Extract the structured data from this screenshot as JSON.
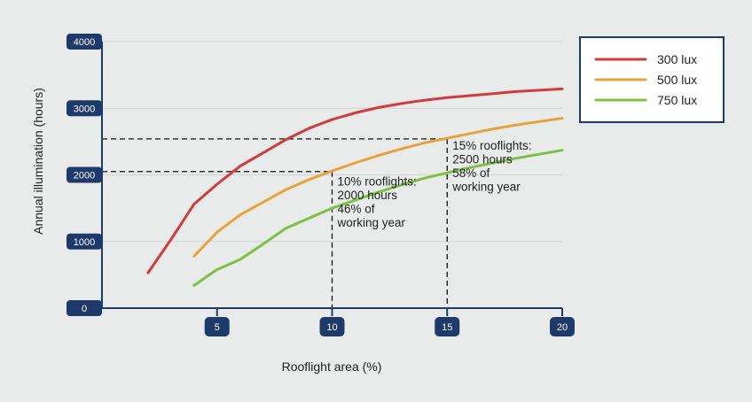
{
  "chart_data": {
    "type": "line",
    "xlabel": "Rooflight area (%)",
    "ylabel": "Annual illumination (hours)",
    "xlim": [
      0,
      20
    ],
    "ylim": [
      0,
      4000
    ],
    "x_ticks": [
      "5",
      "10",
      "15",
      "20"
    ],
    "y_ticks": [
      "0",
      "1000",
      "2000",
      "3000",
      "4000"
    ],
    "grid": "horizontal",
    "legend_position": "top-right",
    "series": [
      {
        "name": "300 lux",
        "color": "#d23b3b",
        "points": [
          [
            2,
            530
          ],
          [
            3,
            1030
          ],
          [
            4,
            1560
          ],
          [
            5,
            1860
          ],
          [
            6,
            2130
          ],
          [
            7,
            2330
          ],
          [
            8,
            2530
          ],
          [
            9,
            2700
          ],
          [
            10,
            2830
          ],
          [
            11,
            2930
          ],
          [
            12,
            3010
          ],
          [
            13,
            3070
          ],
          [
            14,
            3120
          ],
          [
            15,
            3160
          ],
          [
            16,
            3190
          ],
          [
            17,
            3220
          ],
          [
            18,
            3250
          ],
          [
            19,
            3270
          ],
          [
            20,
            3290
          ]
        ]
      },
      {
        "name": "500 lux",
        "color": "#e8a23a",
        "points": [
          [
            4,
            780
          ],
          [
            5,
            1140
          ],
          [
            6,
            1400
          ],
          [
            7,
            1590
          ],
          [
            8,
            1780
          ],
          [
            9,
            1930
          ],
          [
            10,
            2060
          ],
          [
            11,
            2180
          ],
          [
            12,
            2290
          ],
          [
            13,
            2390
          ],
          [
            14,
            2480
          ],
          [
            15,
            2550
          ],
          [
            16,
            2620
          ],
          [
            17,
            2690
          ],
          [
            18,
            2750
          ],
          [
            19,
            2800
          ],
          [
            20,
            2850
          ]
        ]
      },
      {
        "name": "750 lux",
        "color": "#7cc142",
        "points": [
          [
            4,
            340
          ],
          [
            5,
            580
          ],
          [
            6,
            730
          ],
          [
            7,
            960
          ],
          [
            8,
            1200
          ],
          [
            9,
            1350
          ],
          [
            10,
            1500
          ],
          [
            11,
            1620
          ],
          [
            12,
            1740
          ],
          [
            13,
            1850
          ],
          [
            14,
            1950
          ],
          [
            15,
            2030
          ],
          [
            16,
            2110
          ],
          [
            17,
            2180
          ],
          [
            18,
            2250
          ],
          [
            19,
            2310
          ],
          [
            20,
            2370
          ]
        ]
      }
    ],
    "reference_lines": [
      {
        "x": 10,
        "y": 2050
      },
      {
        "x": 15,
        "y": 2540
      }
    ],
    "annotations": [
      {
        "x": 10,
        "y": 2050,
        "lines": [
          "10% rooflights:",
          "2000 hours",
          "46% of",
          "working year"
        ]
      },
      {
        "x": 15,
        "y": 2540,
        "lines": [
          "15% rooflights:",
          "2500 hours",
          "58% of",
          "working year"
        ]
      }
    ]
  }
}
